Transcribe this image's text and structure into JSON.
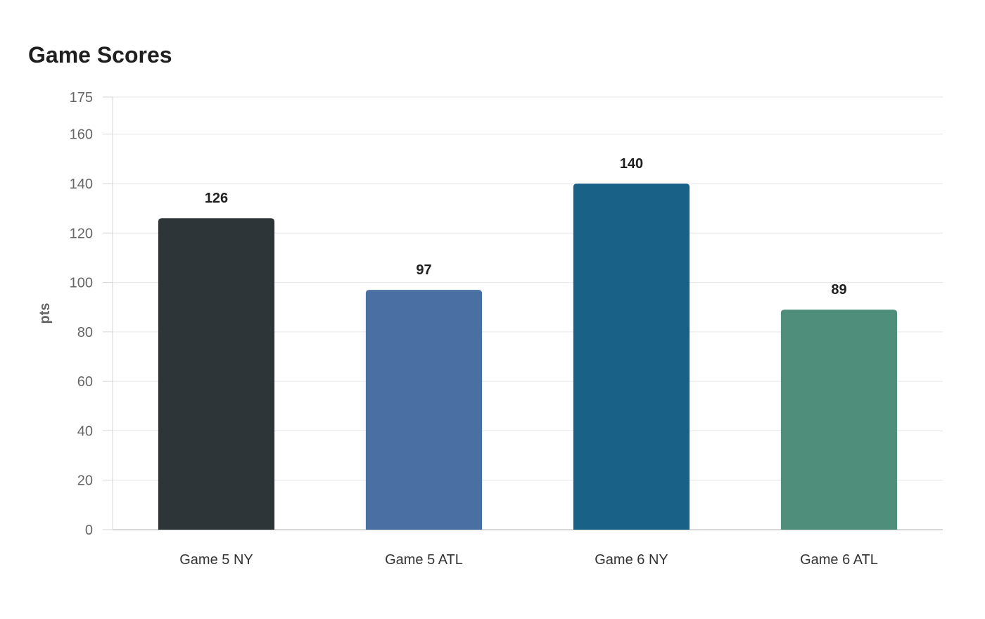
{
  "chart_data": {
    "type": "bar",
    "title": "Game Scores",
    "xlabel": "",
    "ylabel": "pts",
    "categories": [
      "Game 5 NY",
      "Game 5 ATL",
      "Game 6 NY",
      "Game 6 ATL"
    ],
    "values": [
      126,
      97,
      140,
      89
    ],
    "colors": [
      "#2e3538",
      "#4a6fa3",
      "#196187",
      "#4f8e7b"
    ],
    "ylim": [
      0,
      175
    ],
    "yticks": [
      0,
      20,
      40,
      60,
      80,
      100,
      120,
      140,
      160,
      175
    ],
    "grid": true,
    "legend": "none"
  }
}
